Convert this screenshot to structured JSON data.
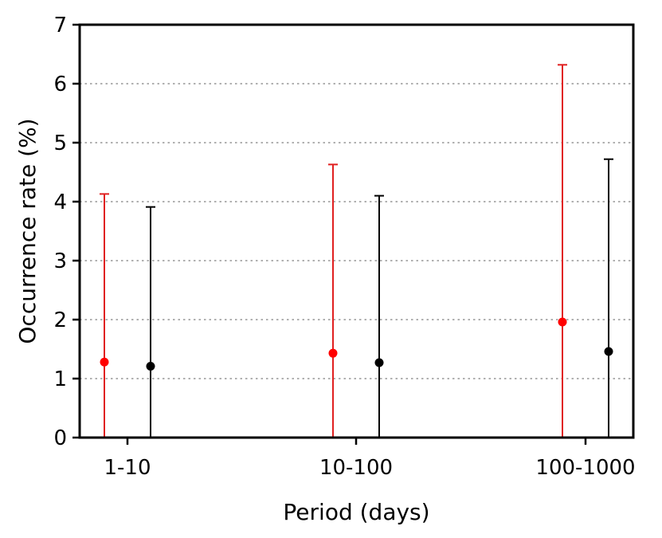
{
  "chart_data": {
    "type": "scatter",
    "title": "",
    "xlabel": "Period (days)",
    "ylabel": "Occurrence rate (%)",
    "categories": [
      "1-10",
      "10-100",
      "100-1000"
    ],
    "ylim": [
      0,
      7
    ],
    "yticks": [
      0,
      1,
      2,
      3,
      4,
      5,
      6,
      7
    ],
    "grid": "horizontal dotted",
    "series": [
      {
        "color": "#ff0000",
        "errorbar_color": "#e02020",
        "values": [
          1.28,
          1.43,
          1.96
        ],
        "lower": [
          0,
          0,
          0
        ],
        "upper": [
          4.13,
          4.63,
          6.32
        ]
      },
      {
        "color": "#000000",
        "errorbar_color": "#000000",
        "values": [
          1.21,
          1.27,
          1.46
        ],
        "lower": [
          0,
          0,
          0
        ],
        "upper": [
          3.91,
          4.1,
          4.72
        ]
      }
    ]
  }
}
